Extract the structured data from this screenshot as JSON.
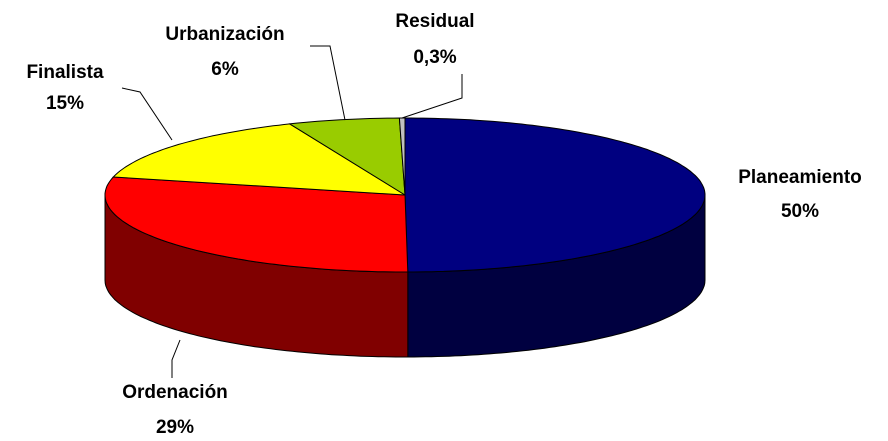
{
  "chart_data": {
    "type": "pie3d",
    "categories": [
      "Planeamiento",
      "Ordenación",
      "Finalista",
      "Urbanización",
      "Residual"
    ],
    "values": [
      50,
      29,
      15,
      6,
      0.3
    ],
    "value_labels": [
      "50%",
      "29%",
      "15%",
      "6%",
      "0,3%"
    ],
    "colors": [
      "#000080",
      "#ff0000",
      "#ffff00",
      "#99cc00",
      "#c0c0c0"
    ]
  }
}
